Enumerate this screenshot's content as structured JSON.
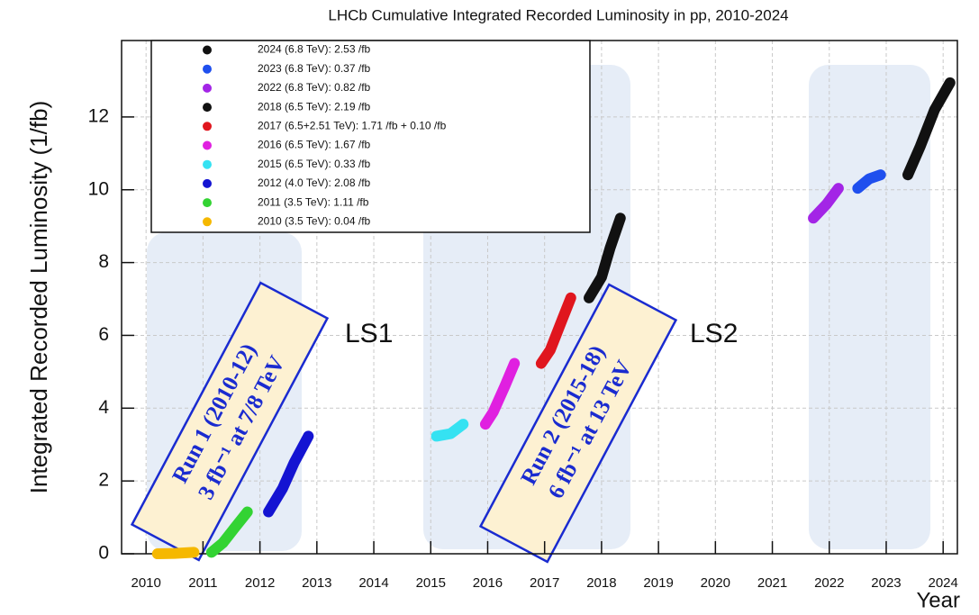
{
  "chart_data": {
    "type": "line",
    "title": "LHCb Cumulative Integrated Recorded Luminosity in pp, 2010-2024",
    "y_label": "Integrated Recorded Luminosity (1/fb)",
    "x_label": "Year",
    "xlim": [
      2009.57,
      2024.25
    ],
    "xticks": [
      2010,
      2011,
      2012,
      2013,
      2014,
      2015,
      2016,
      2017,
      2018,
      2019,
      2020,
      2021,
      2022,
      2023,
      2024
    ],
    "ylim": [
      0,
      14.1
    ],
    "yticks": [
      0,
      2,
      4,
      6,
      8,
      10,
      12
    ],
    "grid": true,
    "legend": "upper left",
    "annotations": [
      "LS1",
      "LS2"
    ],
    "run_labels": [
      [
        "Run 1 (2010-12)",
        "3 fb⁻¹ at 7/8 TeV"
      ],
      [
        "Run 2 (2015-18)",
        "6 fb⁻¹ at 13 TeV"
      ]
    ],
    "series": [
      {
        "name": "2024 (6.8 TeV): 2.53 /fb",
        "color": "#111111",
        "x": [
          2023.38,
          2023.6,
          2023.85,
          2024.12
        ],
        "values": [
          10.41,
          11.2,
          12.2,
          12.94
        ]
      },
      {
        "name": "2023 (6.8 TeV): 0.37 /fb",
        "color": "#1f4fee",
        "x": [
          2022.5,
          2022.7,
          2022.9
        ],
        "values": [
          10.04,
          10.3,
          10.41
        ]
      },
      {
        "name": "2022 (6.8 TeV): 0.82 /fb",
        "color": "#a325e6",
        "x": [
          2021.72,
          2021.95,
          2022.16
        ],
        "values": [
          9.22,
          9.6,
          10.04
        ]
      },
      {
        "name": "2018 (6.5 TeV): 2.19 /fb",
        "color": "#111111",
        "x": [
          2017.78,
          2018.0,
          2018.15,
          2018.33
        ],
        "values": [
          7.03,
          7.6,
          8.4,
          9.22
        ]
      },
      {
        "name": "2017 (6.5+2.51 TeV): 1.71 /fb + 0.10 /fb",
        "color": "#e0161e",
        "x": [
          2016.94,
          2017.1,
          2017.3,
          2017.46
        ],
        "values": [
          5.23,
          5.6,
          6.4,
          7.03
        ]
      },
      {
        "name": "2016 (6.5 TeV): 1.67 /fb",
        "color": "#e020e0",
        "x": [
          2015.96,
          2016.1,
          2016.3,
          2016.47
        ],
        "values": [
          3.56,
          3.9,
          4.6,
          5.23
        ]
      },
      {
        "name": "2015 (6.5 TeV): 0.33 /fb",
        "color": "#35e2f2",
        "x": [
          2015.1,
          2015.35,
          2015.57
        ],
        "values": [
          3.23,
          3.3,
          3.56
        ]
      },
      {
        "name": "2012 (4.0 TeV): 2.08 /fb",
        "color": "#1414d2",
        "x": [
          2012.15,
          2012.4,
          2012.6,
          2012.85
        ],
        "values": [
          1.15,
          1.8,
          2.5,
          3.23
        ]
      },
      {
        "name": "2011 (3.5 TeV): 1.11 /fb",
        "color": "#33d333",
        "x": [
          2011.15,
          2011.35,
          2011.55,
          2011.78
        ],
        "values": [
          0.04,
          0.3,
          0.7,
          1.15
        ]
      },
      {
        "name": "2010 (3.5 TeV): 0.04 /fb",
        "color": "#f5b800",
        "x": [
          2010.2,
          2010.5,
          2010.84
        ],
        "values": [
          0,
          0.01,
          0.04
        ]
      }
    ]
  }
}
